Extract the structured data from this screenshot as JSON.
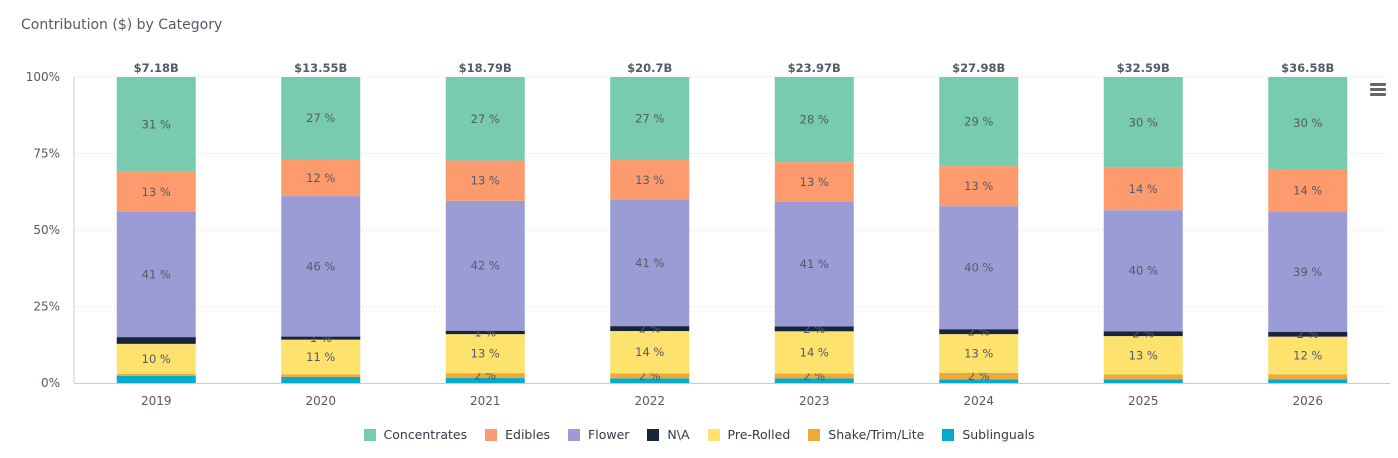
{
  "chart_data": {
    "type": "bar",
    "stacked": "percent",
    "title": "Contribution ($) by Category",
    "xlabel": "",
    "ylabel": "",
    "ylim": [
      0,
      100
    ],
    "yticks": [
      "0%",
      "25%",
      "50%",
      "75%",
      "100%"
    ],
    "grid": true,
    "legend_position": "bottom-center",
    "categories": [
      "2019",
      "2020",
      "2021",
      "2022",
      "2023",
      "2024",
      "2025",
      "2026"
    ],
    "totals": [
      "$7.18B",
      "$13.55B",
      "$18.79B",
      "$20.7B",
      "$23.97B",
      "$27.98B",
      "$32.59B",
      "$36.58B"
    ],
    "series": [
      {
        "name": "Sublinguals",
        "color": "#06aacc",
        "values": [
          2.3,
          2.0,
          1.6,
          1.5,
          1.5,
          1.2,
          1.2,
          1.2
        ],
        "labels": [
          "",
          "",
          "",
          "",
          "",
          "",
          "",
          ""
        ]
      },
      {
        "name": "Shake/Trim/Lite",
        "color": "#ebaa3a",
        "values": [
          0.7,
          0.8,
          1.6,
          1.6,
          1.6,
          2.1,
          1.6,
          1.6
        ],
        "labels": [
          "",
          "",
          "2 %",
          "2 %",
          "2 %",
          "2 %",
          "",
          ""
        ]
      },
      {
        "name": "Pre-Rolled",
        "color": "#fee26e",
        "values": [
          9.8,
          11.4,
          12.6,
          13.8,
          13.9,
          12.6,
          12.7,
          12.3
        ],
        "labels": [
          "10 %",
          "11 %",
          "13 %",
          "14 %",
          "14 %",
          "13 %",
          "13 %",
          "12 %"
        ]
      },
      {
        "name": "N\\A",
        "color": "#18243e",
        "values": [
          2.2,
          1.0,
          1.1,
          1.6,
          1.6,
          1.6,
          1.6,
          1.6
        ],
        "labels": [
          "",
          "1 %",
          "1 %",
          "2 %",
          "2 %",
          "2 %",
          "2 %",
          "2 %"
        ]
      },
      {
        "name": "Flower",
        "color": "#9b9bd6",
        "values": [
          41,
          46,
          42,
          41,
          41,
          40,
          40,
          39
        ],
        "labels": [
          "41 %",
          "46 %",
          "42 %",
          "41 %",
          "41 %",
          "40 %",
          "40 %",
          "39 %"
        ]
      },
      {
        "name": "Edibles",
        "color": "#fd9b6e",
        "values": [
          13,
          12,
          13,
          13,
          13,
          13,
          14,
          14
        ],
        "labels": [
          "13 %",
          "12 %",
          "13 %",
          "13 %",
          "13 %",
          "13 %",
          "14 %",
          "14 %"
        ]
      },
      {
        "name": "Concentrates",
        "color": "#78cbae",
        "values": [
          31,
          27,
          27,
          27,
          28,
          29,
          30,
          30
        ],
        "labels": [
          "31 %",
          "27 %",
          "27 %",
          "27 %",
          "28 %",
          "29 %",
          "30 %",
          "30 %"
        ]
      }
    ]
  },
  "legend": [
    {
      "name": "Concentrates",
      "color": "#78cbae"
    },
    {
      "name": "Edibles",
      "color": "#fd9b6e"
    },
    {
      "name": "Flower",
      "color": "#9b9bd6"
    },
    {
      "name": "N\\A",
      "color": "#18243e"
    },
    {
      "name": "Pre-Rolled",
      "color": "#fee26e"
    },
    {
      "name": "Shake/Trim/Lite",
      "color": "#ebaa3a"
    },
    {
      "name": "Sublinguals",
      "color": "#06aacc"
    }
  ],
  "menu": {
    "icon": "hamburger-menu-icon"
  }
}
